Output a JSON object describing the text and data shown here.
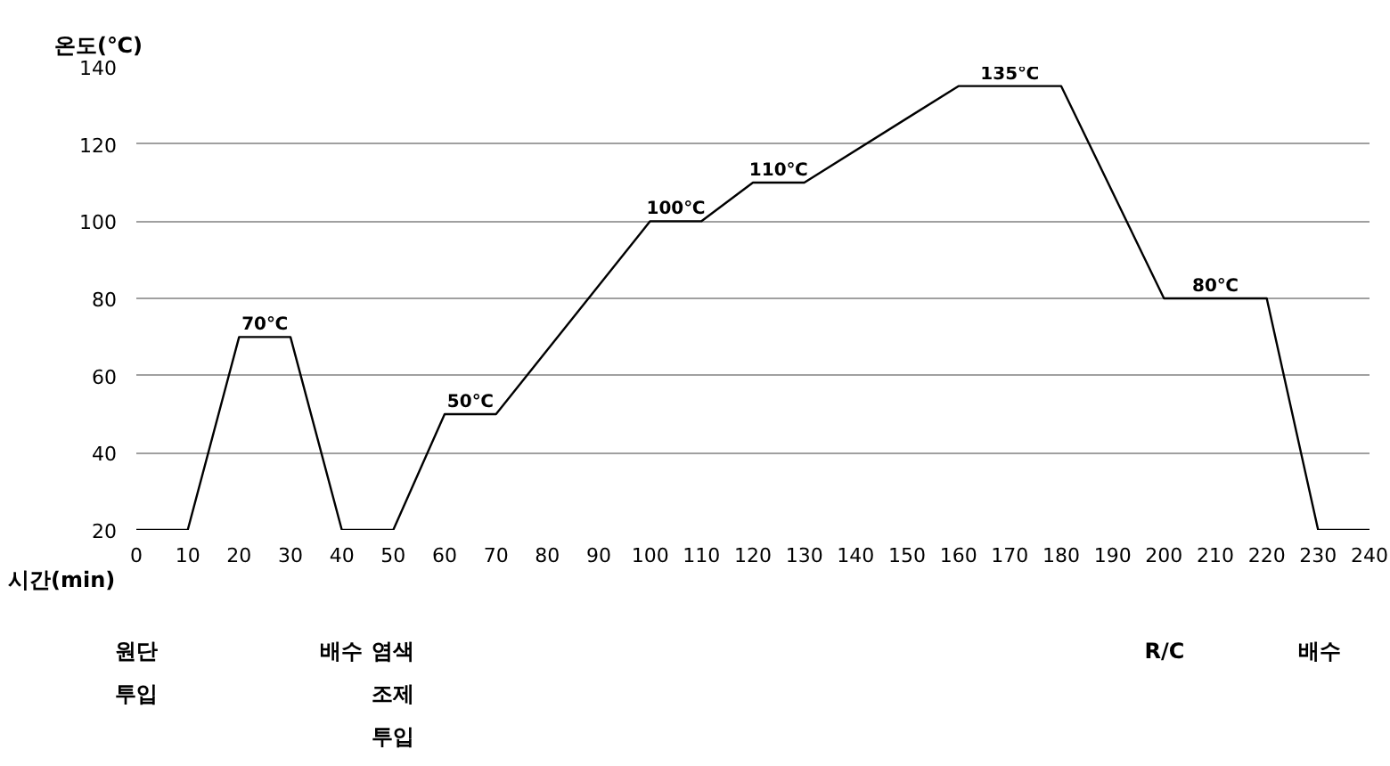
{
  "chart_data": {
    "type": "line",
    "xlabel": "시간(min)",
    "ylabel": "온도(℃)",
    "x": [
      0,
      10,
      20,
      30,
      40,
      50,
      60,
      70,
      100,
      110,
      120,
      130,
      160,
      180,
      200,
      220,
      230,
      240
    ],
    "series": [
      {
        "color": "#000000",
        "values": [
          20,
          20,
          70,
          70,
          20,
          20,
          50,
          50,
          100,
          100,
          110,
          110,
          135,
          135,
          80,
          80,
          20,
          20
        ]
      }
    ],
    "xlim": [
      0,
      240
    ],
    "ylim": [
      20,
      140
    ],
    "xticks": [
      0,
      10,
      20,
      30,
      40,
      50,
      60,
      70,
      80,
      90,
      100,
      110,
      120,
      130,
      140,
      150,
      160,
      170,
      180,
      190,
      200,
      210,
      220,
      230,
      240
    ],
    "yticks": [
      20,
      40,
      60,
      80,
      100,
      120,
      140
    ],
    "grid": "y",
    "marker": "none",
    "line_style": "solid",
    "annotations": [
      {
        "text": "70℃",
        "x": 25,
        "y": 70
      },
      {
        "text": "50℃",
        "x": 65,
        "y": 50
      },
      {
        "text": "100℃",
        "x": 105,
        "y": 100
      },
      {
        "text": "110℃",
        "x": 125,
        "y": 110
      },
      {
        "text": "135℃",
        "x": 170,
        "y": 135
      },
      {
        "text": "80℃",
        "x": 210,
        "y": 80
      },
      "원단\n투입",
      "배수",
      "염색\n조제\n투입",
      "R/C",
      "배수"
    ]
  }
}
